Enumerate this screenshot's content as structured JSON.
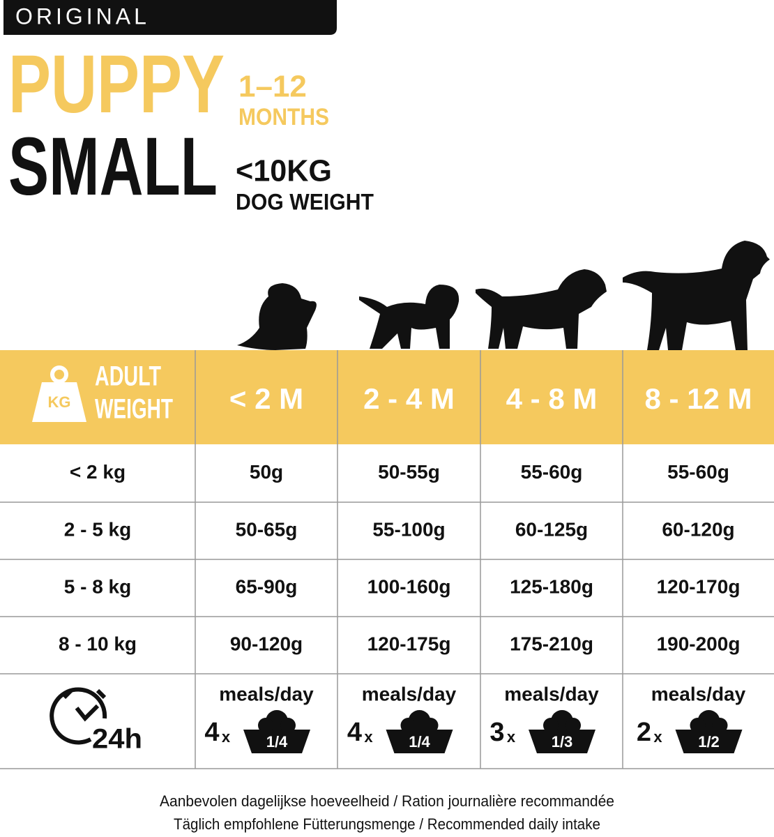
{
  "header": {
    "badge": "ORIGINAL",
    "line1": "PUPPY",
    "age_range": "1–12",
    "age_unit": "MONTHS",
    "line2": "SMALL",
    "weight_range": "<10KG",
    "weight_label": "DOG WEIGHT"
  },
  "table": {
    "corner": {
      "icon": "KG",
      "lines": [
        "ADULT",
        "WEIGHT"
      ]
    },
    "columns": [
      "< 2 M",
      "2 - 4 M",
      "4 - 8 M",
      "8 - 12 M"
    ],
    "rows": [
      [
        "< 2 kg",
        "50g",
        "50-55g",
        "55-60g",
        "55-60g"
      ],
      [
        "2 - 5 kg",
        "50-65g",
        "55-100g",
        "60-125g",
        "60-120g"
      ],
      [
        "5 - 8 kg",
        "65-90g",
        "100-160g",
        "125-180g",
        "120-170g"
      ],
      [
        "8 - 10 kg",
        "90-120g",
        "120-175g",
        "175-210g",
        "190-200g"
      ]
    ],
    "meals": {
      "icon": "24h",
      "cells": [
        {
          "label": "meals/day",
          "count": "4",
          "times": "x",
          "portion": "1/4"
        },
        {
          "label": "meals/day",
          "count": "4",
          "times": "x",
          "portion": "1/4"
        },
        {
          "label": "meals/day",
          "count": "3",
          "times": "x",
          "portion": "1/3"
        },
        {
          "label": "meals/day",
          "count": "2",
          "times": "x",
          "portion": "1/2"
        }
      ]
    }
  },
  "footer": [
    "Aanbevolen dagelijkse hoeveelheid / Ration journalière recommandée",
    "Täglich empfohlene Fütterungsmenge / Recommended daily intake"
  ]
}
